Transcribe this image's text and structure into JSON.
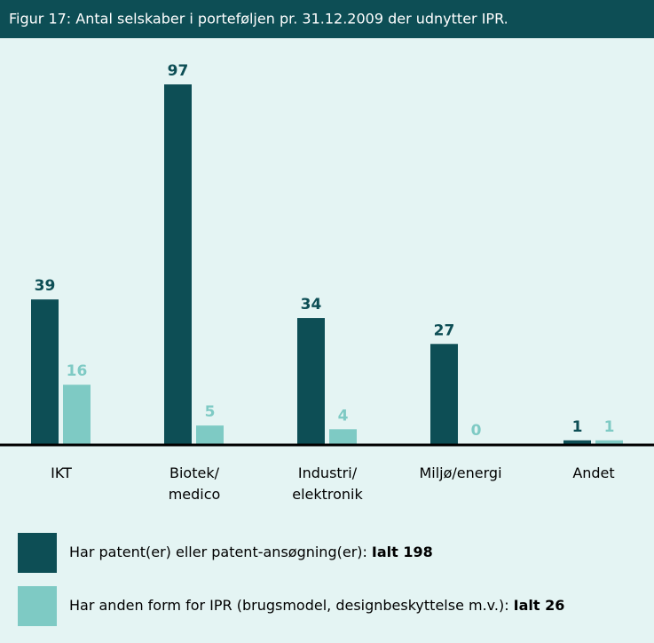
{
  "chart_data": {
    "type": "bar",
    "title": "Figur 17: Antal selskaber i porteføljen pr. 31.12.2009 der udnytter IPR.",
    "categories": [
      "IKT",
      "Biotek/\nmedico",
      "Industri/\nelektronik",
      "Miljø/energi",
      "Andet"
    ],
    "series": [
      {
        "name": "Har patent(er) eller patent-ansøgning(er):",
        "total_label": "Ialt 198",
        "color": "#0d4e55",
        "values": [
          39,
          97,
          34,
          27,
          1
        ]
      },
      {
        "name": "Har anden form for IPR (brugsmodel, designbeskyttelse m.v.):",
        "total_label": "Ialt 26",
        "color": "#7ecac4",
        "values": [
          16,
          5,
          4,
          0,
          1
        ]
      }
    ],
    "ylim": [
      0,
      100
    ]
  }
}
